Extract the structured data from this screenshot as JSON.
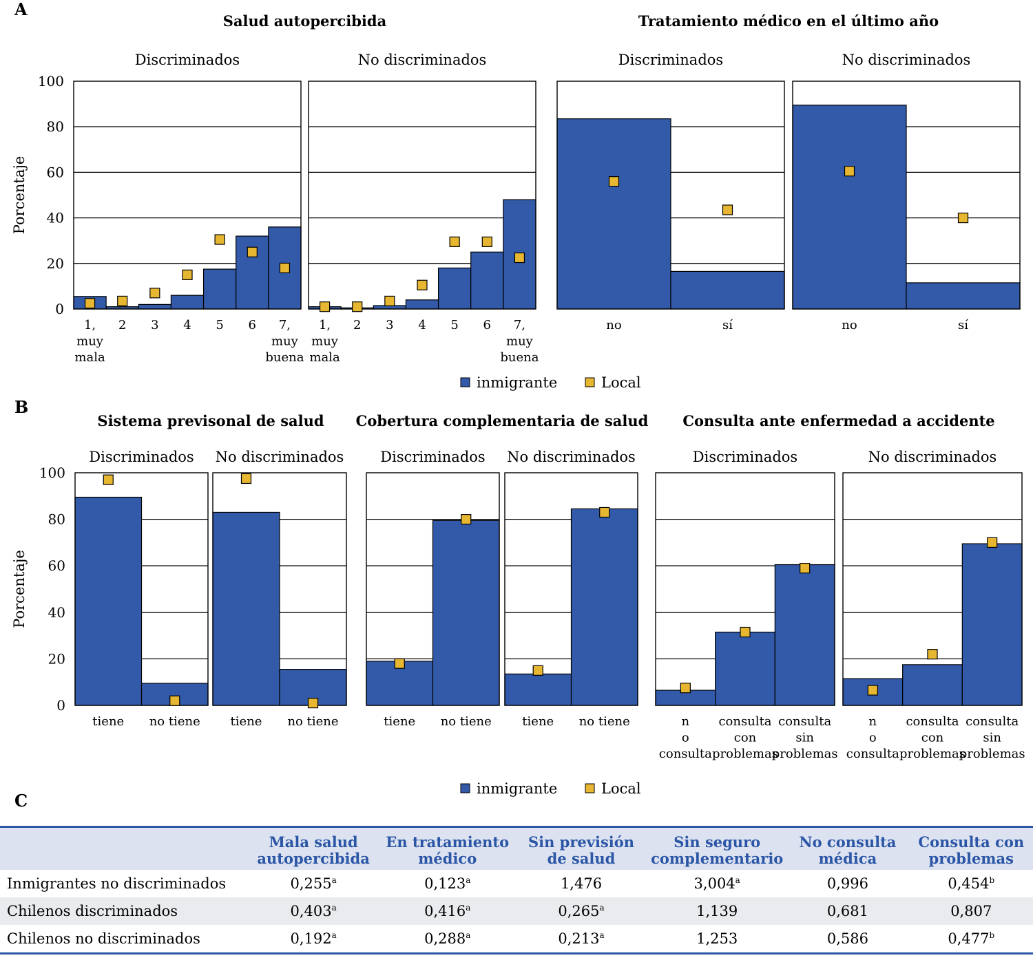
{
  "colors": {
    "immigrant": "#335aa8",
    "local": "#e8b731",
    "grid": "#000000",
    "header_text": "#2a56a5",
    "header_bg": "#dde2f1",
    "row_alt_bg": "#e9ebee"
  },
  "sections": [
    {
      "letter": "A",
      "legend": {
        "immigrant": "inmigrante",
        "local": "Local"
      }
    },
    {
      "letter": "B",
      "legend": {
        "immigrant": "inmigrante",
        "local": "Local"
      }
    },
    {
      "letter": "C"
    }
  ],
  "ylabel": "Porcentaje",
  "chart_data": [
    {
      "type": "bar",
      "title": "Salud autopercibida",
      "subtitle": "Discriminados",
      "ylabel": "Porcentaje",
      "ylim": [
        0,
        100
      ],
      "categories": [
        "1, muy mala",
        "2",
        "3",
        "4",
        "5",
        "6",
        "7, muy buena"
      ],
      "series": [
        {
          "name": "inmigrante",
          "values": [
            5.5,
            1,
            2,
            6,
            17.5,
            32,
            36
          ]
        },
        {
          "name": "Local",
          "values": [
            2.5,
            3.5,
            7,
            15,
            30.5,
            25,
            18
          ]
        }
      ]
    },
    {
      "type": "bar",
      "title": "Salud autopercibida",
      "subtitle": "No discriminados",
      "ylabel": "",
      "ylim": [
        0,
        100
      ],
      "categories": [
        "1, muy mala",
        "2",
        "3",
        "4",
        "5",
        "6",
        "7, muy buena"
      ],
      "series": [
        {
          "name": "inmigrante",
          "values": [
            1,
            0.5,
            1.5,
            4,
            18,
            25,
            48
          ]
        },
        {
          "name": "Local",
          "values": [
            1,
            1,
            3.5,
            10.5,
            29.5,
            29.5,
            22.5
          ]
        }
      ]
    },
    {
      "type": "bar",
      "title": "Tratamiento médico en el último año",
      "subtitle": "Discriminados",
      "ylabel": "",
      "ylim": [
        0,
        100
      ],
      "categories": [
        "no",
        "sí"
      ],
      "series": [
        {
          "name": "inmigrante",
          "values": [
            83.5,
            16.5
          ]
        },
        {
          "name": "Local",
          "values": [
            56,
            43.5
          ]
        }
      ]
    },
    {
      "type": "bar",
      "title": "Tratamiento médico en el último año",
      "subtitle": "No discriminados",
      "ylabel": "",
      "ylim": [
        0,
        100
      ],
      "categories": [
        "no",
        "sí"
      ],
      "series": [
        {
          "name": "inmigrante",
          "values": [
            89.5,
            11.5
          ]
        },
        {
          "name": "Local",
          "values": [
            60.5,
            40
          ]
        }
      ]
    },
    {
      "type": "bar",
      "title": "Sistema previsonal de salud",
      "subtitle": "Discriminados",
      "ylabel": "Porcentaje",
      "ylim": [
        0,
        100
      ],
      "categories": [
        "tiene",
        "no tiene"
      ],
      "series": [
        {
          "name": "inmigrante",
          "values": [
            89.5,
            9.5
          ]
        },
        {
          "name": "Local",
          "values": [
            97,
            2
          ]
        }
      ]
    },
    {
      "type": "bar",
      "title": "Sistema previsonal de salud",
      "subtitle": "No discriminados",
      "ylabel": "",
      "ylim": [
        0,
        100
      ],
      "categories": [
        "tiene",
        "no tiene"
      ],
      "series": [
        {
          "name": "inmigrante",
          "values": [
            83,
            15.5
          ]
        },
        {
          "name": "Local",
          "values": [
            97.5,
            1
          ]
        }
      ]
    },
    {
      "type": "bar",
      "title": "Cobertura complementaria de salud",
      "subtitle": "Discriminados",
      "ylabel": "",
      "ylim": [
        0,
        100
      ],
      "categories": [
        "tiene",
        "no tiene"
      ],
      "series": [
        {
          "name": "inmigrante",
          "values": [
            19,
            79.5
          ]
        },
        {
          "name": "Local",
          "values": [
            18,
            80
          ]
        }
      ]
    },
    {
      "type": "bar",
      "title": "Cobertura complementaria de salud",
      "subtitle": "No discriminados",
      "ylabel": "",
      "ylim": [
        0,
        100
      ],
      "categories": [
        "tiene",
        "no tiene"
      ],
      "series": [
        {
          "name": "inmigrante",
          "values": [
            13.5,
            84.5
          ]
        },
        {
          "name": "Local",
          "values": [
            15,
            83
          ]
        }
      ]
    },
    {
      "type": "bar",
      "title": "Consulta ante enfermedad a accidente",
      "subtitle": "Discriminados",
      "ylabel": "",
      "ylim": [
        0,
        100
      ],
      "categories": [
        "n o consulta",
        "consulta con problemas",
        "consulta sin problemas"
      ],
      "series": [
        {
          "name": "inmigrante",
          "values": [
            6.5,
            31.5,
            60.5
          ]
        },
        {
          "name": "Local",
          "values": [
            7.5,
            31.5,
            59
          ]
        }
      ]
    },
    {
      "type": "bar",
      "title": "Consulta ante enfermedad a accidente",
      "subtitle": "No discriminados",
      "ylabel": "",
      "ylim": [
        0,
        100
      ],
      "categories": [
        "n o consulta",
        "consulta con problemas",
        "consulta sin problemas"
      ],
      "series": [
        {
          "name": "inmigrante",
          "values": [
            11.5,
            17.5,
            69.5
          ]
        },
        {
          "name": "Local",
          "values": [
            6.5,
            22,
            70
          ]
        }
      ]
    }
  ],
  "table": {
    "headers": [
      "",
      "Mala salud\nautopercibida",
      "En tratamiento\nmédico",
      "Sin previsión\nde salud",
      "Sin seguro\ncomplementario",
      "No consulta\nmédica",
      "Consulta con\nproblemas"
    ],
    "rows": [
      {
        "label": "Inmigrantes no discriminados",
        "cells": [
          {
            "v": "0,255",
            "s": "a"
          },
          {
            "v": "0,123",
            "s": "a"
          },
          {
            "v": "1,476",
            "s": ""
          },
          {
            "v": "3,004",
            "s": "a"
          },
          {
            "v": "0,996",
            "s": ""
          },
          {
            "v": "0,454",
            "s": "b"
          }
        ]
      },
      {
        "label": "Chilenos discriminados",
        "cells": [
          {
            "v": "0,403",
            "s": "a"
          },
          {
            "v": "0,416",
            "s": "a"
          },
          {
            "v": "0,265",
            "s": "a"
          },
          {
            "v": "1,139",
            "s": ""
          },
          {
            "v": "0,681",
            "s": ""
          },
          {
            "v": "0,807",
            "s": ""
          }
        ]
      },
      {
        "label": "Chilenos no discriminados",
        "cells": [
          {
            "v": "0,192",
            "s": "a"
          },
          {
            "v": "0,288",
            "s": "a"
          },
          {
            "v": "0,213",
            "s": "a"
          },
          {
            "v": "1,253",
            "s": ""
          },
          {
            "v": "0,586",
            "s": ""
          },
          {
            "v": "0,477",
            "s": "b"
          }
        ]
      }
    ]
  }
}
